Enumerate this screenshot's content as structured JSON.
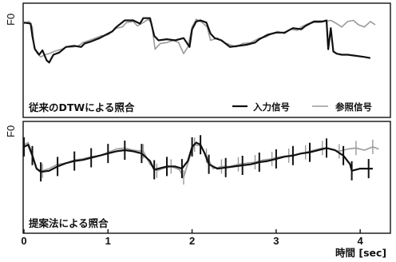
{
  "chart_data": [
    {
      "type": "line",
      "ylabel": "F0",
      "annotation": "従来のDTWによる照合",
      "legend_placement": "bottom-right",
      "xlim": [
        0,
        4.35
      ],
      "ylim": [
        0,
        1
      ],
      "grid": false,
      "series": [
        {
          "name": "入力信号",
          "color": "#111111",
          "style": "solid-thick",
          "points": [
            [
              0,
              0.84
            ],
            [
              0.08,
              0.83
            ],
            [
              0.1,
              0.72
            ],
            [
              0.13,
              0.6
            ],
            [
              0.18,
              0.55
            ],
            [
              0.22,
              0.59
            ],
            [
              0.27,
              0.5
            ],
            [
              0.3,
              0.48
            ],
            [
              0.35,
              0.55
            ],
            [
              0.42,
              0.57
            ],
            [
              0.5,
              0.62
            ],
            [
              0.6,
              0.63
            ],
            [
              0.68,
              0.62
            ],
            [
              0.72,
              0.65
            ],
            [
              0.8,
              0.67
            ],
            [
              0.9,
              0.7
            ],
            [
              1.0,
              0.74
            ],
            [
              1.05,
              0.76
            ],
            [
              1.1,
              0.8
            ],
            [
              1.15,
              0.83
            ],
            [
              1.2,
              0.86
            ],
            [
              1.3,
              0.86
            ],
            [
              1.38,
              0.83
            ],
            [
              1.42,
              0.88
            ],
            [
              1.5,
              0.88
            ],
            [
              1.55,
              0.72
            ],
            [
              1.6,
              0.68
            ],
            [
              1.7,
              0.69
            ],
            [
              1.8,
              0.68
            ],
            [
              1.9,
              0.7
            ],
            [
              1.97,
              0.62
            ],
            [
              2.0,
              0.78
            ],
            [
              2.05,
              0.85
            ],
            [
              2.1,
              0.86
            ],
            [
              2.17,
              0.84
            ],
            [
              2.22,
              0.74
            ],
            [
              2.27,
              0.7
            ],
            [
              2.35,
              0.68
            ],
            [
              2.45,
              0.62
            ],
            [
              2.55,
              0.63
            ],
            [
              2.65,
              0.64
            ],
            [
              2.75,
              0.66
            ],
            [
              2.8,
              0.69
            ],
            [
              2.9,
              0.73
            ],
            [
              3.0,
              0.75
            ],
            [
              3.1,
              0.75
            ],
            [
              3.2,
              0.79
            ],
            [
              3.3,
              0.78
            ],
            [
              3.35,
              0.81
            ],
            [
              3.45,
              0.85
            ],
            [
              3.55,
              0.85
            ],
            [
              3.6,
              0.86
            ],
            [
              3.62,
              0.6
            ],
            [
              3.65,
              0.79
            ],
            [
              3.68,
              0.58
            ],
            [
              3.72,
              0.56
            ],
            [
              3.78,
              0.55
            ],
            [
              3.85,
              0.55
            ],
            [
              3.95,
              0.54
            ],
            [
              4.05,
              0.53
            ],
            [
              4.12,
              0.52
            ]
          ]
        },
        {
          "name": "参照信号",
          "color": "#9a9a9a",
          "style": "solid-thin",
          "points": [
            [
              0,
              0.83
            ],
            [
              0.06,
              0.85
            ],
            [
              0.1,
              0.8
            ],
            [
              0.12,
              0.62
            ],
            [
              0.16,
              0.56
            ],
            [
              0.2,
              0.53
            ],
            [
              0.25,
              0.55
            ],
            [
              0.3,
              0.56
            ],
            [
              0.36,
              0.58
            ],
            [
              0.45,
              0.6
            ],
            [
              0.5,
              0.62
            ],
            [
              0.58,
              0.62
            ],
            [
              0.65,
              0.63
            ],
            [
              0.7,
              0.66
            ],
            [
              0.78,
              0.68
            ],
            [
              0.85,
              0.7
            ],
            [
              0.92,
              0.72
            ],
            [
              1.0,
              0.73
            ],
            [
              1.05,
              0.76
            ],
            [
              1.1,
              0.79
            ],
            [
              1.17,
              0.8
            ],
            [
              1.22,
              0.84
            ],
            [
              1.3,
              0.85
            ],
            [
              1.35,
              0.81
            ],
            [
              1.42,
              0.84
            ],
            [
              1.48,
              0.87
            ],
            [
              1.52,
              0.83
            ],
            [
              1.56,
              0.6
            ],
            [
              1.62,
              0.65
            ],
            [
              1.7,
              0.66
            ],
            [
              1.78,
              0.68
            ],
            [
              1.84,
              0.66
            ],
            [
              1.9,
              0.56
            ],
            [
              1.95,
              0.62
            ],
            [
              2.0,
              0.8
            ],
            [
              2.05,
              0.87
            ],
            [
              2.12,
              0.84
            ],
            [
              2.18,
              0.8
            ],
            [
              2.22,
              0.68
            ],
            [
              2.3,
              0.7
            ],
            [
              2.38,
              0.66
            ],
            [
              2.45,
              0.64
            ],
            [
              2.52,
              0.62
            ],
            [
              2.6,
              0.65
            ],
            [
              2.7,
              0.66
            ],
            [
              2.8,
              0.7
            ],
            [
              2.88,
              0.71
            ],
            [
              2.95,
              0.74
            ],
            [
              3.02,
              0.76
            ],
            [
              3.1,
              0.74
            ],
            [
              3.17,
              0.78
            ],
            [
              3.25,
              0.77
            ],
            [
              3.3,
              0.8
            ],
            [
              3.38,
              0.83
            ],
            [
              3.45,
              0.84
            ],
            [
              3.52,
              0.84
            ],
            [
              3.58,
              0.85
            ],
            [
              3.65,
              0.86
            ],
            [
              3.72,
              0.83
            ],
            [
              3.78,
              0.8
            ],
            [
              3.85,
              0.85
            ],
            [
              3.92,
              0.86
            ],
            [
              3.98,
              0.82
            ],
            [
              4.05,
              0.8
            ],
            [
              4.12,
              0.85
            ],
            [
              4.18,
              0.82
            ]
          ]
        }
      ]
    },
    {
      "type": "line",
      "ylabel": "F0",
      "annotation": "提案法による照合",
      "xlim": [
        0,
        4.35
      ],
      "ylim": [
        0,
        1
      ],
      "grid": false,
      "xticks": [
        0,
        1,
        2,
        3,
        4
      ],
      "xlabel": "時間 [sec]",
      "series": [
        {
          "name": "入力信号",
          "color": "#111111",
          "style": "solid-thick",
          "points": [
            [
              0,
              0.78
            ],
            [
              0.05,
              0.8
            ],
            [
              0.1,
              0.7
            ],
            [
              0.15,
              0.58
            ],
            [
              0.2,
              0.55
            ],
            [
              0.3,
              0.56
            ],
            [
              0.4,
              0.6
            ],
            [
              0.5,
              0.63
            ],
            [
              0.6,
              0.65
            ],
            [
              0.7,
              0.66
            ],
            [
              0.8,
              0.68
            ],
            [
              0.9,
              0.7
            ],
            [
              1.0,
              0.72
            ],
            [
              1.1,
              0.74
            ],
            [
              1.2,
              0.75
            ],
            [
              1.3,
              0.74
            ],
            [
              1.4,
              0.72
            ],
            [
              1.5,
              0.65
            ],
            [
              1.55,
              0.57
            ],
            [
              1.6,
              0.58
            ],
            [
              1.7,
              0.6
            ],
            [
              1.8,
              0.6
            ],
            [
              1.88,
              0.58
            ],
            [
              1.95,
              0.65
            ],
            [
              2.0,
              0.78
            ],
            [
              2.05,
              0.82
            ],
            [
              2.1,
              0.8
            ],
            [
              2.15,
              0.72
            ],
            [
              2.2,
              0.62
            ],
            [
              2.3,
              0.58
            ],
            [
              2.4,
              0.59
            ],
            [
              2.5,
              0.6
            ],
            [
              2.6,
              0.61
            ],
            [
              2.7,
              0.62
            ],
            [
              2.8,
              0.64
            ],
            [
              2.9,
              0.65
            ],
            [
              3.0,
              0.67
            ],
            [
              3.1,
              0.69
            ],
            [
              3.2,
              0.7
            ],
            [
              3.3,
              0.72
            ],
            [
              3.4,
              0.73
            ],
            [
              3.5,
              0.75
            ],
            [
              3.6,
              0.77
            ],
            [
              3.7,
              0.75
            ],
            [
              3.8,
              0.7
            ],
            [
              3.88,
              0.62
            ],
            [
              3.9,
              0.56
            ],
            [
              4.0,
              0.58
            ],
            [
              4.1,
              0.58
            ],
            [
              4.15,
              0.58
            ]
          ]
        },
        {
          "name": "参照信号",
          "color": "#9a9a9a",
          "style": "solid-thin",
          "points": [
            [
              0,
              0.8
            ],
            [
              0.05,
              0.82
            ],
            [
              0.1,
              0.72
            ],
            [
              0.15,
              0.58
            ],
            [
              0.22,
              0.56
            ],
            [
              0.3,
              0.58
            ],
            [
              0.4,
              0.62
            ],
            [
              0.5,
              0.63
            ],
            [
              0.6,
              0.66
            ],
            [
              0.7,
              0.67
            ],
            [
              0.8,
              0.69
            ],
            [
              0.9,
              0.7
            ],
            [
              1.0,
              0.73
            ],
            [
              1.1,
              0.76
            ],
            [
              1.2,
              0.77
            ],
            [
              1.3,
              0.75
            ],
            [
              1.42,
              0.74
            ],
            [
              1.5,
              0.62
            ],
            [
              1.58,
              0.56
            ],
            [
              1.65,
              0.58
            ],
            [
              1.75,
              0.6
            ],
            [
              1.85,
              0.57
            ],
            [
              1.9,
              0.5
            ],
            [
              1.97,
              0.68
            ],
            [
              2.03,
              0.8
            ],
            [
              2.1,
              0.79
            ],
            [
              2.17,
              0.7
            ],
            [
              2.25,
              0.58
            ],
            [
              2.35,
              0.6
            ],
            [
              2.45,
              0.6
            ],
            [
              2.55,
              0.62
            ],
            [
              2.65,
              0.63
            ],
            [
              2.75,
              0.64
            ],
            [
              2.85,
              0.66
            ],
            [
              2.95,
              0.67
            ],
            [
              3.05,
              0.69
            ],
            [
              3.15,
              0.7
            ],
            [
              3.25,
              0.71
            ],
            [
              3.35,
              0.73
            ],
            [
              3.45,
              0.75
            ],
            [
              3.55,
              0.77
            ],
            [
              3.65,
              0.76
            ],
            [
              3.75,
              0.74
            ],
            [
              3.85,
              0.76
            ],
            [
              3.95,
              0.77
            ],
            [
              4.05,
              0.75
            ],
            [
              4.15,
              0.78
            ],
            [
              4.22,
              0.76
            ]
          ]
        }
      ]
    }
  ]
}
